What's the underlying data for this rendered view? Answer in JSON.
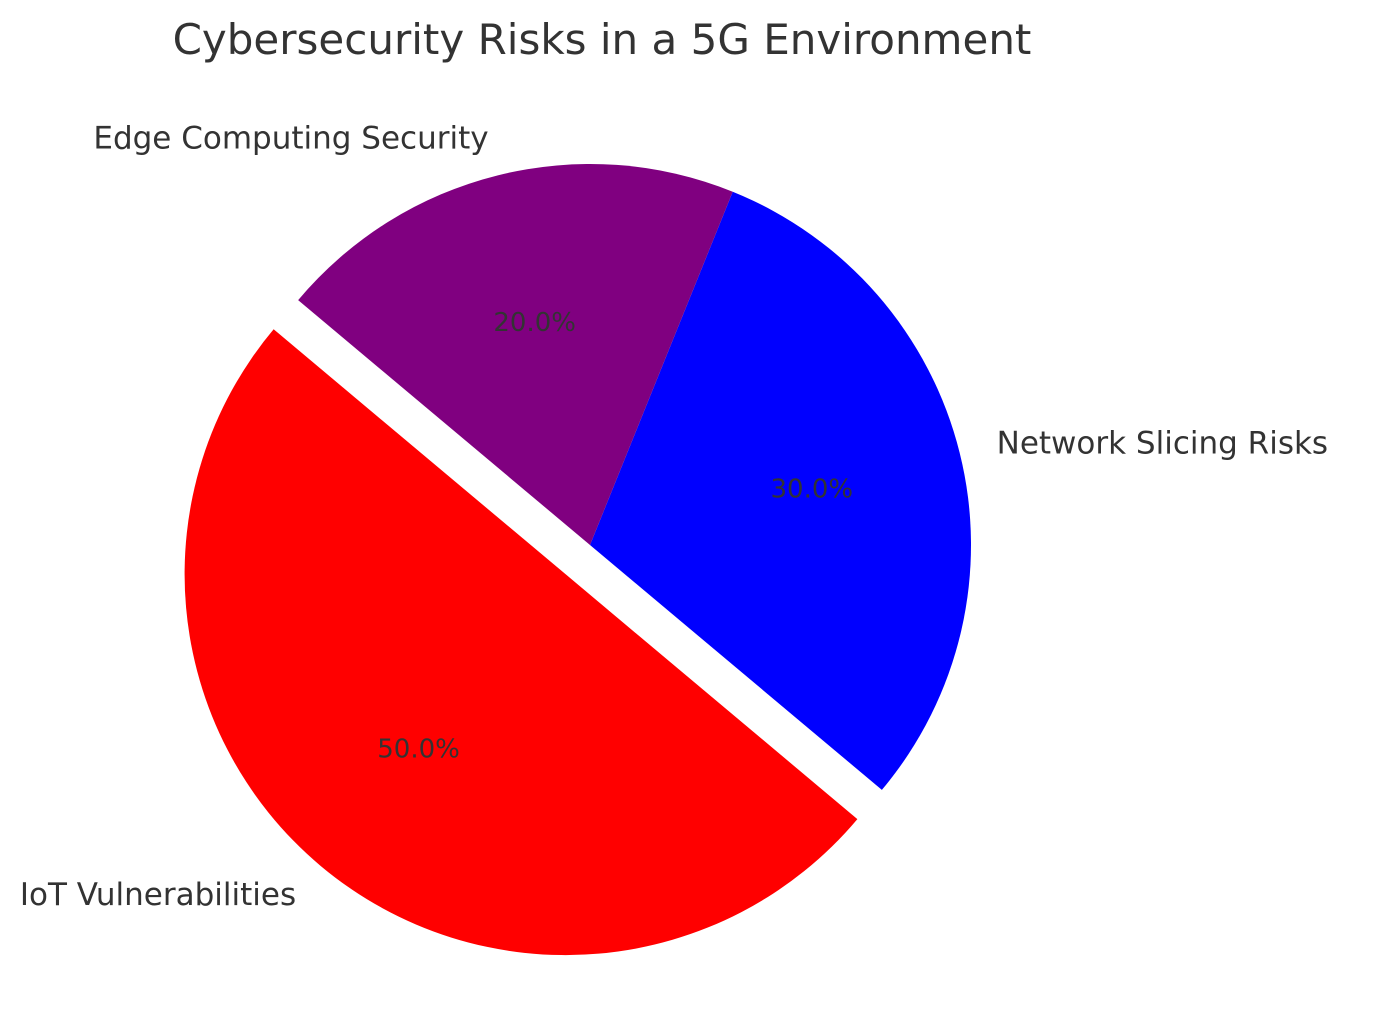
{
  "chart_data": {
    "type": "pie",
    "title": "Cybersecurity Risks in a 5G Environment",
    "categories": [
      "IoT Vulnerabilities",
      "Network Slicing Risks",
      "Edge Computing Security"
    ],
    "values": [
      50,
      30,
      20
    ],
    "percent_labels": [
      "50.0%",
      "30.0%",
      "20.0%"
    ],
    "colors": [
      "#ff0000",
      "#0000ff",
      "#800080"
    ],
    "explode": [
      0.1,
      0,
      0
    ],
    "start_angle": 140,
    "legend": "none"
  }
}
